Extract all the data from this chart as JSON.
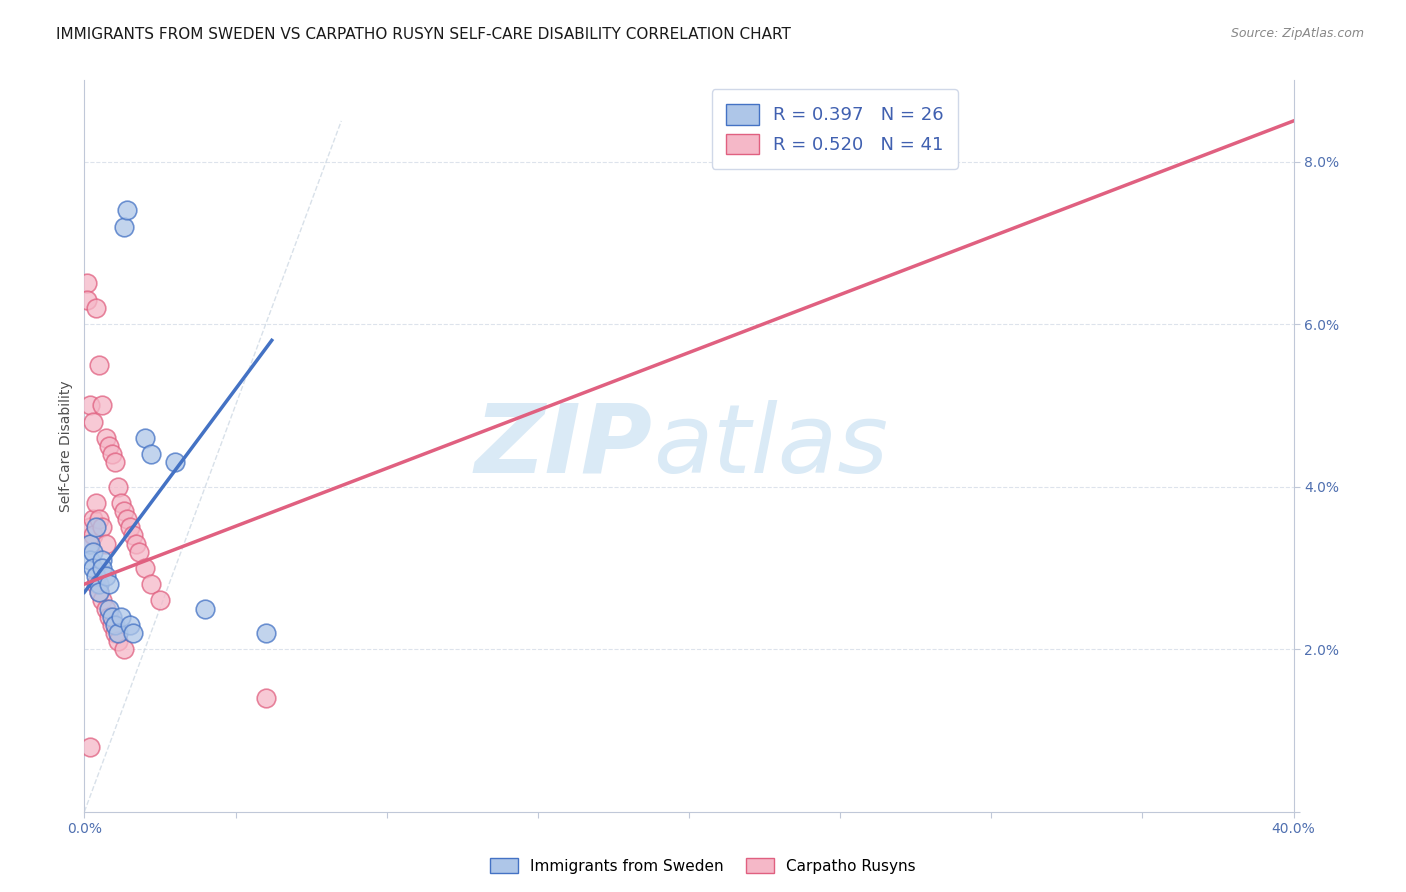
{
  "title": "IMMIGRANTS FROM SWEDEN VS CARPATHO RUSYN SELF-CARE DISABILITY CORRELATION CHART",
  "source": "Source: ZipAtlas.com",
  "ylabel": "Self-Care Disability",
  "xlim": [
    0,
    0.4
  ],
  "ylim": [
    0,
    0.09
  ],
  "xticks": [
    0.0,
    0.05,
    0.1,
    0.15,
    0.2,
    0.25,
    0.3,
    0.35,
    0.4
  ],
  "yticks": [
    0.0,
    0.02,
    0.04,
    0.06,
    0.08
  ],
  "blue_scatter_x": [
    0.013,
    0.014,
    0.002,
    0.002,
    0.003,
    0.003,
    0.004,
    0.004,
    0.005,
    0.005,
    0.006,
    0.006,
    0.007,
    0.008,
    0.008,
    0.009,
    0.01,
    0.011,
    0.012,
    0.015,
    0.016,
    0.02,
    0.022,
    0.03,
    0.04,
    0.06
  ],
  "blue_scatter_y": [
    0.072,
    0.074,
    0.033,
    0.031,
    0.032,
    0.03,
    0.035,
    0.029,
    0.028,
    0.027,
    0.031,
    0.03,
    0.029,
    0.028,
    0.025,
    0.024,
    0.023,
    0.022,
    0.024,
    0.023,
    0.022,
    0.046,
    0.044,
    0.043,
    0.025,
    0.022
  ],
  "pink_scatter_x": [
    0.001,
    0.001,
    0.002,
    0.002,
    0.002,
    0.003,
    0.003,
    0.003,
    0.004,
    0.004,
    0.004,
    0.005,
    0.005,
    0.005,
    0.006,
    0.006,
    0.006,
    0.007,
    0.007,
    0.007,
    0.008,
    0.008,
    0.009,
    0.009,
    0.01,
    0.01,
    0.011,
    0.011,
    0.012,
    0.013,
    0.014,
    0.015,
    0.016,
    0.017,
    0.018,
    0.02,
    0.022,
    0.025,
    0.06,
    0.013,
    0.002
  ],
  "pink_scatter_y": [
    0.065,
    0.063,
    0.05,
    0.035,
    0.033,
    0.048,
    0.036,
    0.034,
    0.062,
    0.038,
    0.028,
    0.055,
    0.036,
    0.027,
    0.05,
    0.035,
    0.026,
    0.046,
    0.033,
    0.025,
    0.045,
    0.024,
    0.044,
    0.023,
    0.043,
    0.022,
    0.04,
    0.021,
    0.038,
    0.037,
    0.036,
    0.035,
    0.034,
    0.033,
    0.032,
    0.03,
    0.028,
    0.026,
    0.014,
    0.02,
    0.008
  ],
  "blue_line_x": [
    0.0,
    0.062
  ],
  "blue_line_y": [
    0.027,
    0.058
  ],
  "pink_line_x": [
    0.0,
    0.4
  ],
  "pink_line_y": [
    0.028,
    0.085
  ],
  "diag_line_x": [
    0.0,
    0.085
  ],
  "diag_line_y": [
    0.0,
    0.085
  ],
  "legend_blue_r": "R = 0.397",
  "legend_blue_n": "N = 26",
  "legend_pink_r": "R = 0.520",
  "legend_pink_n": "N = 41",
  "blue_color": "#aec6e8",
  "pink_color": "#f5b8c8",
  "blue_line_color": "#4472c4",
  "pink_line_color": "#e06080",
  "diag_color": "#c8d4e0",
  "watermark_zip": "ZIP",
  "watermark_atlas": "atlas",
  "watermark_color": "#daeaf6",
  "legend_r_color": "#4060b0",
  "bg_color": "#ffffff",
  "grid_color": "#dde3ec",
  "title_fontsize": 11,
  "axis_label_fontsize": 10,
  "tick_fontsize": 10,
  "tick_color": "#5070b0"
}
